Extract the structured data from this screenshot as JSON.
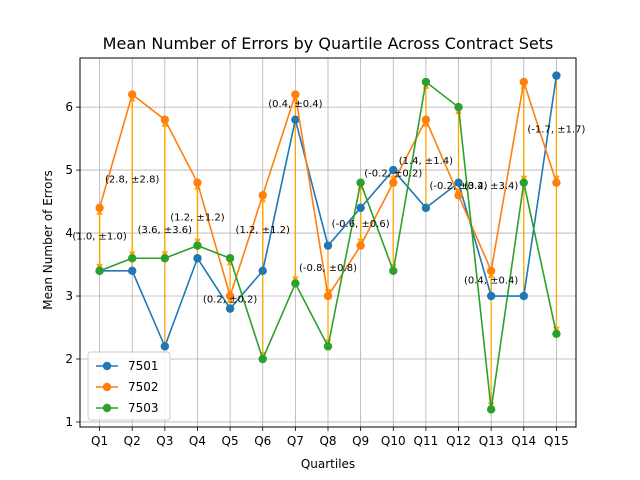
{
  "chart_data": {
    "type": "line",
    "title": "Mean Number of Errors by Quartile Across Contract Sets",
    "xlabel": "Quartiles",
    "ylabel": "Mean Number of Errors",
    "categories": [
      "Q1",
      "Q2",
      "Q3",
      "Q4",
      "Q5",
      "Q6",
      "Q7",
      "Q8",
      "Q9",
      "Q10",
      "Q11",
      "Q12",
      "Q13",
      "Q14",
      "Q15"
    ],
    "ylim": [
      0.92,
      6.78
    ],
    "yticks": [
      1,
      2,
      3,
      4,
      5,
      6
    ],
    "grid": true,
    "legend_position": "lower-left",
    "series": [
      {
        "name": "7501",
        "color": "#1f77b4",
        "values": [
          3.4,
          3.4,
          2.2,
          3.6,
          2.8,
          3.4,
          5.8,
          3.8,
          4.4,
          5.0,
          4.4,
          4.8,
          3.0,
          3.0,
          6.5
        ]
      },
      {
        "name": "7502",
        "color": "#ff7f0e",
        "values": [
          4.4,
          6.2,
          5.8,
          4.8,
          3.0,
          4.6,
          6.2,
          3.0,
          3.8,
          4.8,
          5.8,
          4.6,
          3.4,
          6.4,
          4.8
        ]
      },
      {
        "name": "7503",
        "color": "#2ca02c",
        "values": [
          3.4,
          3.6,
          3.6,
          3.8,
          3.6,
          2.0,
          3.2,
          2.2,
          4.8,
          3.4,
          6.4,
          6.0,
          1.2,
          4.8,
          2.4
        ]
      }
    ],
    "arrow_color": "#ffa500",
    "annotations": [
      {
        "text": "(1.0, ±1.0)",
        "x": 0,
        "y": 3.9
      },
      {
        "text": "(2.8, ±2.8)",
        "x": 1,
        "y": 4.8
      },
      {
        "text": "(3.6, ±3.6)",
        "x": 2,
        "y": 4.0
      },
      {
        "text": "(1.2, ±1.2)",
        "x": 3,
        "y": 4.2
      },
      {
        "text": "(0.2, ±0.2)",
        "x": 4,
        "y": 2.9
      },
      {
        "text": "(1.2, ±1.2)",
        "x": 5,
        "y": 4.0
      },
      {
        "text": "(0.4, ±0.4)",
        "x": 6,
        "y": 6.0
      },
      {
        "text": "(-0.8, ±0.8)",
        "x": 7,
        "y": 3.4
      },
      {
        "text": "(-0.6, ±0.6)",
        "x": 8,
        "y": 4.1
      },
      {
        "text": "(-0.2, ±0.2)",
        "x": 9,
        "y": 4.9
      },
      {
        "text": "(1.4, ±1.4)",
        "x": 10,
        "y": 5.1
      },
      {
        "text": "(-0.2, ±0.2)",
        "x": 11,
        "y": 4.7
      },
      {
        "text": "(3.4, ±3.4)",
        "x": 12,
        "y": 4.7
      },
      {
        "text": "(0.4, ±0.4)",
        "x": 12,
        "y": 3.2
      },
      {
        "text": "(-1.7, ±1.7)",
        "x": 14,
        "y": 5.6
      }
    ]
  }
}
